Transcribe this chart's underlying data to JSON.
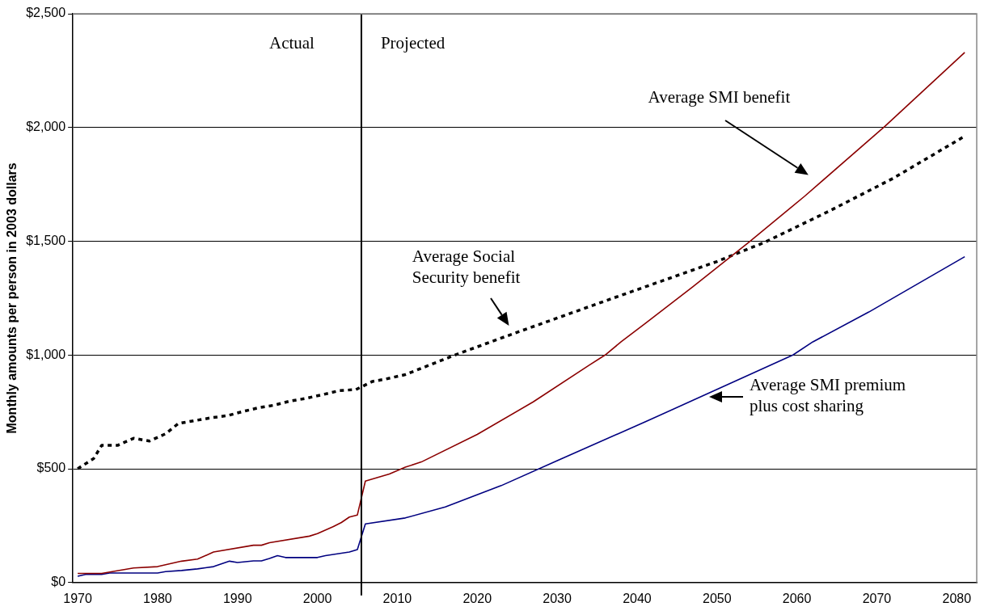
{
  "chart_data": {
    "type": "line",
    "ylabel": "Monthly amounts per person in 2003 dollars",
    "xlim": [
      1969.4,
      2082.5
    ],
    "xticks": [
      1970,
      1980,
      1990,
      2000,
      2010,
      2020,
      2030,
      2040,
      2050,
      2060,
      2070,
      2080
    ],
    "ylim": [
      0,
      2500
    ],
    "yticks": [
      {
        "value": 0,
        "label": "$0"
      },
      {
        "value": 500,
        "label": "$500"
      },
      {
        "value": 1000,
        "label": "$1,000"
      },
      {
        "value": 1500,
        "label": "$1,500"
      },
      {
        "value": 2000,
        "label": "$2,000"
      },
      {
        "value": 2500,
        "label": "$2,500"
      }
    ],
    "grid": "y",
    "legend": false,
    "marker": "none",
    "series": [
      {
        "color": "#8b0000",
        "line_style": "solid",
        "x": [
          1970,
          1973,
          1977,
          1980,
          1983,
          1985,
          1987,
          1992,
          1993,
          1994,
          1999,
          2000,
          2002,
          2003,
          2004,
          2005,
          2006,
          2009,
          2011,
          2013,
          2020,
          2027,
          2034,
          2036,
          2038,
          2041,
          2047,
          2054,
          2061,
          2071,
          2081
        ],
        "values": [
          40,
          40,
          64,
          70,
          94,
          103,
          134,
          164,
          164,
          175,
          204,
          215,
          246,
          264,
          288,
          297,
          446,
          477,
          507,
          530,
          651,
          794,
          955,
          1000,
          1058,
          1138,
          1301,
          1496,
          1699,
          2005,
          2330
        ]
      },
      {
        "color": "#000080",
        "line_style": "solid",
        "x": [
          1970,
          1971,
          1973,
          1974,
          1980,
          1981,
          1983,
          1985,
          1987,
          1989,
          1990,
          1992,
          1993,
          1994,
          1995,
          1996,
          2000,
          2001,
          2004,
          2005,
          2006,
          2011,
          2016,
          2023,
          2030,
          2041,
          2049,
          2059.5,
          2062,
          2069,
          2081
        ],
        "values": [
          28,
          36,
          36,
          42,
          42,
          48,
          53,
          60,
          70,
          94,
          88,
          95,
          95,
          106,
          118,
          110,
          110,
          118,
          134,
          145,
          258,
          284,
          332,
          426,
          536,
          706,
          833,
          1000,
          1058,
          1189,
          1432
        ]
      },
      {
        "color": "#000000",
        "line_style": "dotted",
        "x": [
          1970,
          1972,
          1973,
          1975,
          1977,
          1979,
          1981,
          1982.6,
          1984.7,
          1986.7,
          1988.8,
          1990.6,
          1992.6,
          1994.5,
          1996.5,
          1998.5,
          2000.8,
          2002.8,
          2004.8,
          2006.9,
          2008.5,
          2011,
          2017,
          2021,
          2025,
          2037,
          2050,
          2056,
          2064,
          2072,
          2081
        ],
        "values": [
          500,
          545,
          603,
          603,
          634,
          622,
          654,
          699,
          712,
          724,
          734,
          751,
          768,
          779,
          797,
          809,
          827,
          844,
          848,
          884,
          894,
          914,
          997,
          1049,
          1100,
          1250,
          1411,
          1496,
          1632,
          1776,
          1962
        ]
      }
    ],
    "ref_lines": [
      {
        "axis": "x",
        "value": 2005.5,
        "color": "#000000"
      }
    ],
    "annotations": [
      "Actual",
      "Projected",
      "Average SMI benefit",
      {
        "text": "Average Social Security benefit",
        "x": 2024,
        "y": 1108
      },
      {
        "text": "Average SMI premium plus cost sharing",
        "x": 2049,
        "y": 830
      }
    ]
  }
}
